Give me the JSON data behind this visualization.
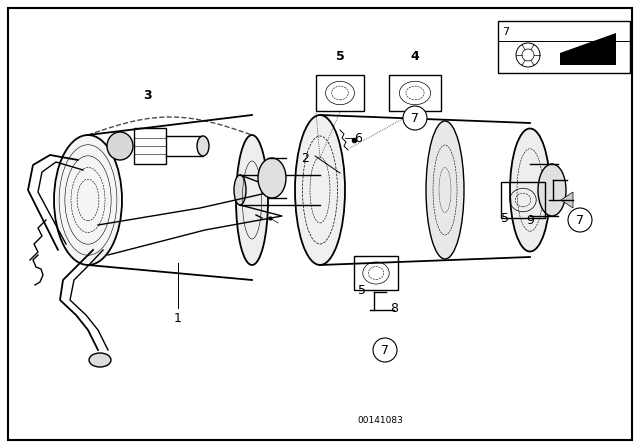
{
  "background_color": "#ffffff",
  "fig_width": 6.4,
  "fig_height": 4.48,
  "dpi": 100,
  "footer_text": "00141083",
  "label_fontsize": 9,
  "small_fontsize": 7.5,
  "lw_main": 1.0,
  "lw_thin": 0.6,
  "lw_thick": 1.3
}
